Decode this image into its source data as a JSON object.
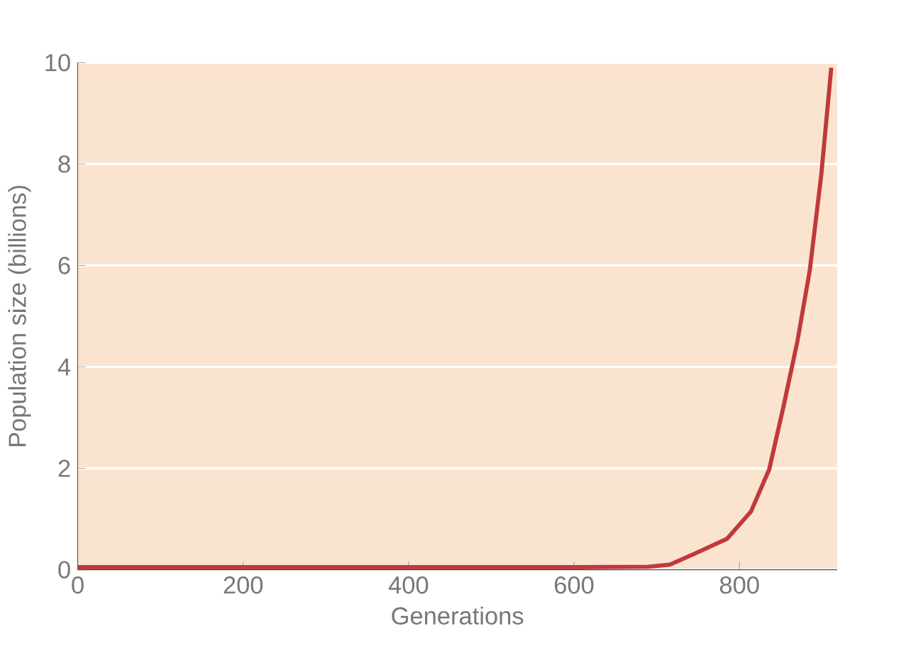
{
  "chart_data": {
    "type": "line",
    "xlabel": "Generations",
    "ylabel": "Population size (billions)",
    "x": [
      0,
      200,
      400,
      600,
      690,
      716,
      745,
      785,
      814,
      836,
      853,
      870,
      885,
      899,
      911
    ],
    "series": [
      {
        "color": "#c0393b",
        "values": [
          0.05,
          0.05,
          0.05,
          0.05,
          0.06,
          0.1,
          0.31,
          0.61,
          1.15,
          1.98,
          3.2,
          4.5,
          5.9,
          7.8,
          9.9
        ]
      }
    ],
    "xlim": [
      0,
      918
    ],
    "ylim": [
      0,
      10
    ],
    "xticks": [
      0,
      200,
      400,
      600,
      800
    ],
    "yticks": [
      0,
      2,
      4,
      6,
      8,
      10
    ],
    "grid": "y",
    "marker": "none",
    "line_style": "solid"
  }
}
